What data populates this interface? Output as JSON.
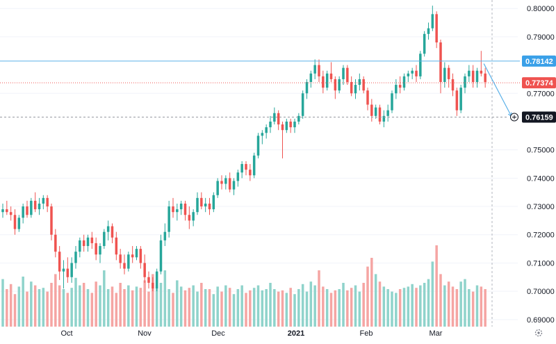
{
  "chart_data": {
    "type": "candlestick",
    "y_axis": {
      "ticks": [
        "0.80000",
        "0.79000",
        "0.77000",
        "0.75000",
        "0.74000",
        "0.73000",
        "0.72000",
        "0.71000",
        "0.70000",
        "0.69000"
      ],
      "tick_values": [
        0.8,
        0.79,
        0.77,
        0.75,
        0.74,
        0.73,
        0.72,
        0.71,
        0.7,
        0.69
      ],
      "range": [
        0.6875,
        0.803
      ]
    },
    "x_axis": {
      "labels": [
        "Oct",
        "Nov",
        "Dec",
        "2021",
        "Feb",
        "Mar"
      ],
      "bold_label": "2021"
    },
    "ohlc": [
      [
        0.728,
        0.731,
        0.726,
        0.729
      ],
      [
        0.729,
        0.732,
        0.727,
        0.728
      ],
      [
        0.728,
        0.73,
        0.725,
        0.727
      ],
      [
        0.727,
        0.729,
        0.72,
        0.722
      ],
      [
        0.722,
        0.727,
        0.721,
        0.726
      ],
      [
        0.726,
        0.731,
        0.724,
        0.73
      ],
      [
        0.73,
        0.732,
        0.726,
        0.727
      ],
      [
        0.727,
        0.733,
        0.726,
        0.732
      ],
      [
        0.732,
        0.735,
        0.728,
        0.729
      ],
      [
        0.729,
        0.733,
        0.727,
        0.731
      ],
      [
        0.731,
        0.734,
        0.729,
        0.733
      ],
      [
        0.733,
        0.734,
        0.728,
        0.73
      ],
      [
        0.73,
        0.731,
        0.718,
        0.72
      ],
      [
        0.72,
        0.722,
        0.712,
        0.714
      ],
      [
        0.714,
        0.716,
        0.704,
        0.707
      ],
      [
        0.707,
        0.711,
        0.701,
        0.708
      ],
      [
        0.708,
        0.712,
        0.703,
        0.705
      ],
      [
        0.705,
        0.712,
        0.703,
        0.71
      ],
      [
        0.71,
        0.716,
        0.708,
        0.714
      ],
      [
        0.714,
        0.719,
        0.712,
        0.718
      ],
      [
        0.718,
        0.72,
        0.714,
        0.716
      ],
      [
        0.716,
        0.72,
        0.714,
        0.719
      ],
      [
        0.719,
        0.721,
        0.715,
        0.717
      ],
      [
        0.717,
        0.719,
        0.711,
        0.713
      ],
      [
        0.713,
        0.717,
        0.71,
        0.716
      ],
      [
        0.716,
        0.722,
        0.715,
        0.721
      ],
      [
        0.721,
        0.725,
        0.718,
        0.723
      ],
      [
        0.723,
        0.724,
        0.717,
        0.719
      ],
      [
        0.719,
        0.721,
        0.711,
        0.713
      ],
      [
        0.713,
        0.715,
        0.708,
        0.71
      ],
      [
        0.71,
        0.713,
        0.706,
        0.708
      ],
      [
        0.708,
        0.714,
        0.707,
        0.713
      ],
      [
        0.713,
        0.716,
        0.71,
        0.712
      ],
      [
        0.712,
        0.716,
        0.711,
        0.715
      ],
      [
        0.715,
        0.716,
        0.708,
        0.71
      ],
      [
        0.71,
        0.713,
        0.703,
        0.705
      ],
      [
        0.705,
        0.707,
        0.701,
        0.703
      ],
      [
        0.703,
        0.705,
        0.7,
        0.701
      ],
      [
        0.701,
        0.708,
        0.7,
        0.707
      ],
      [
        0.707,
        0.72,
        0.706,
        0.718
      ],
      [
        0.718,
        0.724,
        0.716,
        0.721
      ],
      [
        0.721,
        0.732,
        0.719,
        0.73
      ],
      [
        0.73,
        0.733,
        0.726,
        0.728
      ],
      [
        0.728,
        0.731,
        0.725,
        0.729
      ],
      [
        0.729,
        0.732,
        0.727,
        0.731
      ],
      [
        0.731,
        0.732,
        0.725,
        0.727
      ],
      [
        0.727,
        0.73,
        0.722,
        0.725
      ],
      [
        0.725,
        0.729,
        0.723,
        0.728
      ],
      [
        0.728,
        0.735,
        0.727,
        0.733
      ],
      [
        0.733,
        0.735,
        0.729,
        0.73
      ],
      [
        0.73,
        0.733,
        0.728,
        0.731
      ],
      [
        0.731,
        0.733,
        0.727,
        0.729
      ],
      [
        0.729,
        0.735,
        0.728,
        0.734
      ],
      [
        0.734,
        0.74,
        0.733,
        0.739
      ],
      [
        0.739,
        0.741,
        0.736,
        0.738
      ],
      [
        0.738,
        0.741,
        0.736,
        0.74
      ],
      [
        0.74,
        0.742,
        0.735,
        0.736
      ],
      [
        0.736,
        0.74,
        0.734,
        0.739
      ],
      [
        0.739,
        0.743,
        0.737,
        0.742
      ],
      [
        0.742,
        0.746,
        0.74,
        0.745
      ],
      [
        0.745,
        0.746,
        0.741,
        0.743
      ],
      [
        0.743,
        0.745,
        0.739,
        0.741
      ],
      [
        0.741,
        0.749,
        0.74,
        0.748
      ],
      [
        0.748,
        0.756,
        0.747,
        0.755
      ],
      [
        0.755,
        0.757,
        0.752,
        0.756
      ],
      [
        0.756,
        0.759,
        0.754,
        0.758
      ],
      [
        0.758,
        0.762,
        0.756,
        0.76
      ],
      [
        0.76,
        0.765,
        0.759,
        0.763
      ],
      [
        0.763,
        0.764,
        0.757,
        0.759
      ],
      [
        0.759,
        0.76,
        0.747,
        0.757
      ],
      [
        0.757,
        0.761,
        0.756,
        0.76
      ],
      [
        0.76,
        0.761,
        0.756,
        0.758
      ],
      [
        0.758,
        0.761,
        0.756,
        0.76
      ],
      [
        0.76,
        0.763,
        0.759,
        0.762
      ],
      [
        0.762,
        0.771,
        0.761,
        0.77
      ],
      [
        0.77,
        0.775,
        0.768,
        0.774
      ],
      [
        0.774,
        0.778,
        0.772,
        0.777
      ],
      [
        0.777,
        0.782,
        0.775,
        0.78
      ],
      [
        0.78,
        0.782,
        0.774,
        0.776
      ],
      [
        0.776,
        0.778,
        0.77,
        0.772
      ],
      [
        0.772,
        0.778,
        0.771,
        0.777
      ],
      [
        0.777,
        0.781,
        0.774,
        0.775
      ],
      [
        0.775,
        0.776,
        0.768,
        0.771
      ],
      [
        0.771,
        0.776,
        0.77,
        0.775
      ],
      [
        0.775,
        0.78,
        0.773,
        0.779
      ],
      [
        0.779,
        0.78,
        0.773,
        0.774
      ],
      [
        0.774,
        0.776,
        0.769,
        0.77
      ],
      [
        0.77,
        0.775,
        0.768,
        0.773
      ],
      [
        0.773,
        0.777,
        0.771,
        0.775
      ],
      [
        0.775,
        0.776,
        0.77,
        0.771
      ],
      [
        0.771,
        0.772,
        0.764,
        0.766
      ],
      [
        0.766,
        0.768,
        0.76,
        0.762
      ],
      [
        0.762,
        0.766,
        0.761,
        0.765
      ],
      [
        0.765,
        0.766,
        0.759,
        0.76
      ],
      [
        0.76,
        0.764,
        0.758,
        0.762
      ],
      [
        0.762,
        0.766,
        0.76,
        0.764
      ],
      [
        0.764,
        0.771,
        0.763,
        0.77
      ],
      [
        0.77,
        0.775,
        0.768,
        0.773
      ],
      [
        0.773,
        0.776,
        0.77,
        0.772
      ],
      [
        0.772,
        0.777,
        0.771,
        0.776
      ],
      [
        0.776,
        0.778,
        0.774,
        0.777
      ],
      [
        0.777,
        0.779,
        0.775,
        0.778
      ],
      [
        0.778,
        0.78,
        0.774,
        0.776
      ],
      [
        0.776,
        0.785,
        0.775,
        0.784
      ],
      [
        0.784,
        0.792,
        0.783,
        0.791
      ],
      [
        0.791,
        0.795,
        0.789,
        0.793
      ],
      [
        0.793,
        0.801,
        0.792,
        0.798
      ],
      [
        0.798,
        0.799,
        0.786,
        0.788
      ],
      [
        0.788,
        0.789,
        0.77,
        0.774
      ],
      [
        0.774,
        0.781,
        0.772,
        0.779
      ],
      [
        0.779,
        0.78,
        0.772,
        0.775
      ],
      [
        0.775,
        0.777,
        0.769,
        0.771
      ],
      [
        0.771,
        0.772,
        0.762,
        0.764
      ],
      [
        0.764,
        0.773,
        0.763,
        0.772
      ],
      [
        0.772,
        0.777,
        0.77,
        0.776
      ],
      [
        0.776,
        0.78,
        0.774,
        0.778
      ],
      [
        0.778,
        0.78,
        0.772,
        0.774
      ],
      [
        0.774,
        0.779,
        0.772,
        0.778
      ],
      [
        0.778,
        0.785,
        0.776,
        0.777
      ],
      [
        0.777,
        0.779,
        0.772,
        0.774
      ]
    ],
    "volume": [
      38,
      30,
      34,
      26,
      32,
      40,
      28,
      36,
      33,
      30,
      31,
      28,
      35,
      42,
      33,
      30,
      27,
      31,
      39,
      33,
      35,
      30,
      27,
      36,
      33,
      45,
      30,
      32,
      27,
      35,
      30,
      33,
      29,
      32,
      31,
      37,
      28,
      42,
      33,
      35,
      45,
      30,
      27,
      37,
      32,
      29,
      31,
      33,
      28,
      35,
      30,
      30,
      26,
      32,
      28,
      33,
      31,
      26,
      30,
      33,
      27,
      29,
      31,
      33,
      29,
      30,
      35,
      30,
      28,
      29,
      27,
      31,
      26,
      30,
      34,
      28,
      36,
      33,
      45,
      32,
      30,
      27,
      29,
      30,
      35,
      29,
      31,
      33,
      28,
      35,
      48,
      55,
      42,
      36,
      32,
      30,
      28,
      27,
      30,
      31,
      32,
      34,
      31,
      33,
      35,
      38,
      52,
      65,
      42,
      33,
      36,
      32,
      30,
      36,
      38,
      30,
      28,
      33,
      32,
      30
    ],
    "horizontal_lines": [
      {
        "price": 0.78142,
        "label": "0.78142"
      },
      {
        "price": 0.76159,
        "label": "0.76159"
      }
    ],
    "last_price": {
      "price": 0.77374,
      "label": "0.77374"
    },
    "projection": {
      "from_price": 0.7805,
      "to_price": 0.7618
    },
    "colors": {
      "up": "#26a69a",
      "down": "#ef5350",
      "up_volume": "#8fd3cb",
      "down_volume": "#f5a5a3",
      "hline": "#5ab0e8",
      "grid": "#f0f3fa",
      "text": "#131722"
    }
  }
}
